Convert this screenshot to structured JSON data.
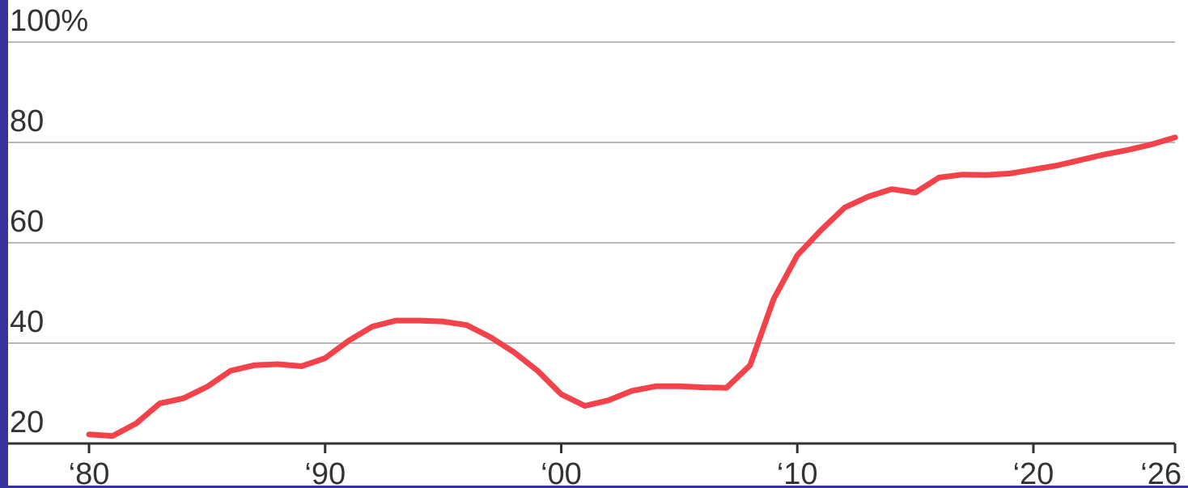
{
  "colors": {
    "series": "#f4424a",
    "border": "#34349a",
    "grid": "#b8b8b8",
    "axis": "#333333"
  },
  "chart_data": {
    "type": "line",
    "title": "",
    "xlabel": "",
    "ylabel": "",
    "xlim": [
      1980,
      2026
    ],
    "ylim": [
      20,
      100
    ],
    "y_ticks": [
      {
        "value": 100,
        "label": "100%"
      },
      {
        "value": 80,
        "label": "80"
      },
      {
        "value": 60,
        "label": "60"
      },
      {
        "value": 40,
        "label": "40"
      },
      {
        "value": 20,
        "label": "20"
      }
    ],
    "x_ticks": [
      {
        "value": 1980,
        "label": "‘80"
      },
      {
        "value": 1990,
        "label": "‘90"
      },
      {
        "value": 2000,
        "label": "‘00"
      },
      {
        "value": 2010,
        "label": "‘10"
      },
      {
        "value": 2020,
        "label": "‘20"
      },
      {
        "value": 2026,
        "label": "‘26"
      }
    ],
    "grid": true,
    "legend": "none",
    "series": [
      {
        "x": [
          1980,
          1981,
          1982,
          1983,
          1984,
          1985,
          1986,
          1987,
          1988,
          1989,
          1990,
          1991,
          1992,
          1993,
          1994,
          1995,
          1996,
          1997,
          1998,
          1999,
          2000,
          2001,
          2002,
          2003,
          2004,
          2005,
          2006,
          2007,
          2008,
          2009,
          2010,
          2011,
          2012,
          2013,
          2014,
          2015,
          2016,
          2017,
          2018,
          2019,
          2020,
          2021,
          2022,
          2023,
          2024,
          2025,
          2026
        ],
        "values": [
          21.8,
          21.5,
          24.0,
          28.0,
          29.0,
          31.3,
          34.5,
          35.6,
          35.8,
          35.4,
          37.0,
          40.5,
          43.3,
          44.5,
          44.5,
          44.3,
          43.6,
          41.2,
          38.2,
          34.5,
          29.8,
          27.5,
          28.6,
          30.5,
          31.4,
          31.4,
          31.2,
          31.1,
          35.6,
          48.8,
          57.5,
          62.5,
          67.0,
          69.2,
          70.7,
          70.0,
          73.0,
          73.6,
          73.5,
          73.8,
          74.6,
          75.4,
          76.5,
          77.6,
          78.5,
          79.6,
          81.0
        ]
      }
    ]
  }
}
